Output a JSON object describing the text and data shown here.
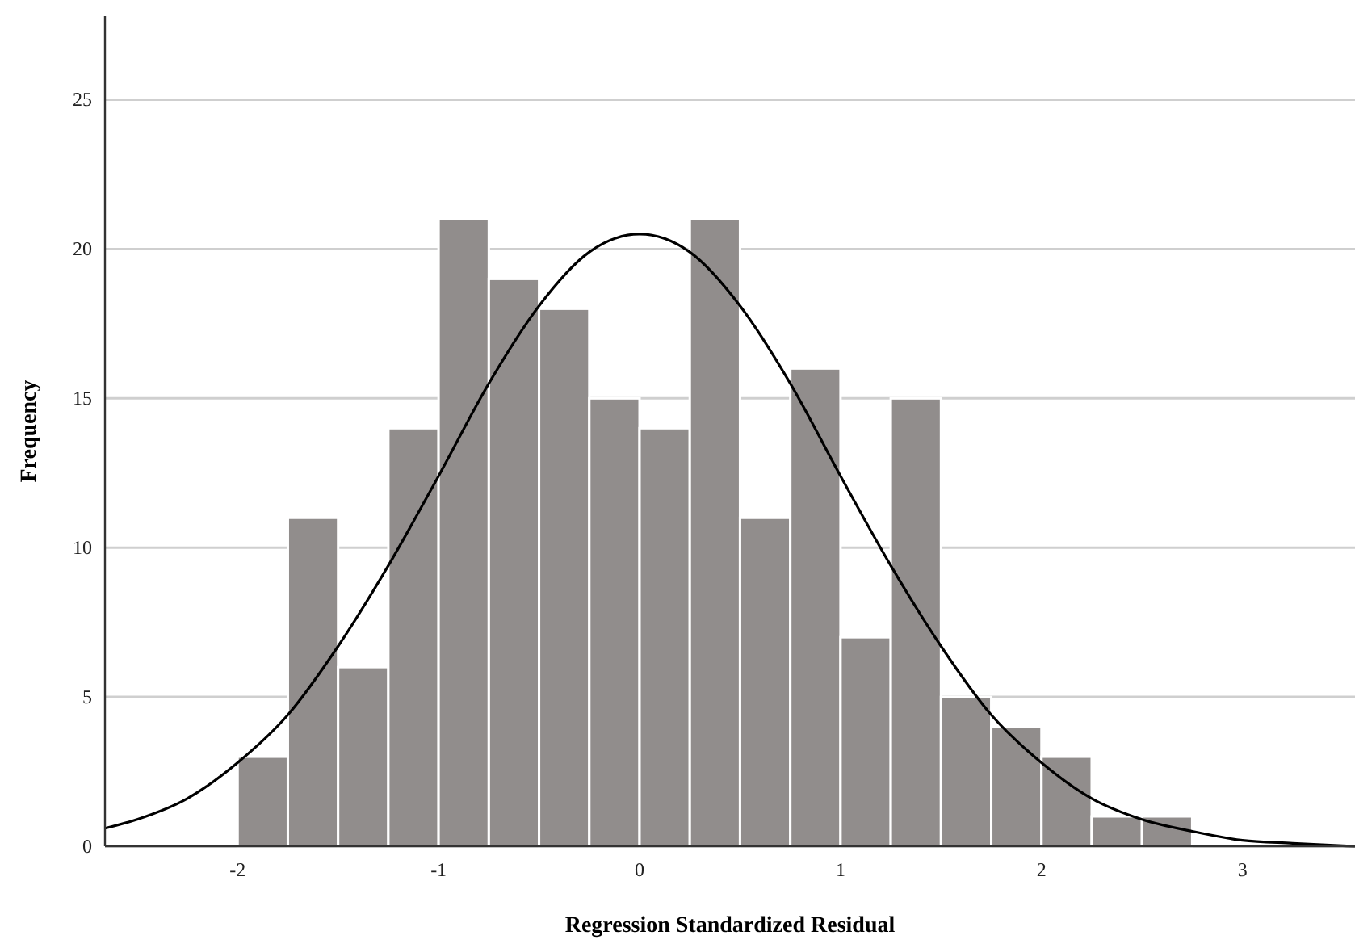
{
  "chart_data": {
    "type": "histogram",
    "xlabel": "Regression Standardized Residual",
    "ylabel": "Frequency",
    "bins": [
      -2,
      -1.75,
      -1.5,
      -1.25,
      -1,
      -0.75,
      -0.5,
      -0.25,
      0,
      0.25,
      0.5,
      0.75,
      1,
      1.25,
      1.5,
      1.75,
      2,
      2.25,
      2.5,
      2.75
    ],
    "values": [
      3,
      11,
      6,
      14,
      21,
      19,
      18,
      15,
      14,
      21,
      11,
      16,
      7,
      15,
      5,
      4,
      3,
      1,
      1
    ],
    "color": "#918d8c",
    "series": [
      {
        "type": "line",
        "color": "#000000",
        "x": [
          -2.66,
          -2.5,
          -2.25,
          -2,
          -1.75,
          -1.5,
          -1.25,
          -1,
          -0.75,
          -0.5,
          -0.25,
          0,
          0.25,
          0.5,
          0.75,
          1,
          1.25,
          1.5,
          1.75,
          2,
          2.25,
          2.5,
          2.75,
          3,
          3.25,
          3.56
        ],
        "values": [
          0.6,
          0.9,
          1.6,
          2.8,
          4.4,
          6.7,
          9.4,
          12.4,
          15.5,
          18.1,
          19.9,
          20.5,
          19.9,
          18.1,
          15.5,
          12.4,
          9.4,
          6.7,
          4.4,
          2.8,
          1.6,
          0.9,
          0.5,
          0.2,
          0.1,
          0
        ]
      }
    ],
    "xlim": [
      -2.66,
      3.56
    ],
    "ylim": [
      0,
      27.8
    ],
    "xticks": [
      -2,
      -1,
      0,
      1,
      2,
      3
    ],
    "yticks": [
      0,
      5,
      10,
      15,
      20,
      25
    ],
    "grid": "y",
    "marker": "none",
    "line_style": "solid"
  }
}
